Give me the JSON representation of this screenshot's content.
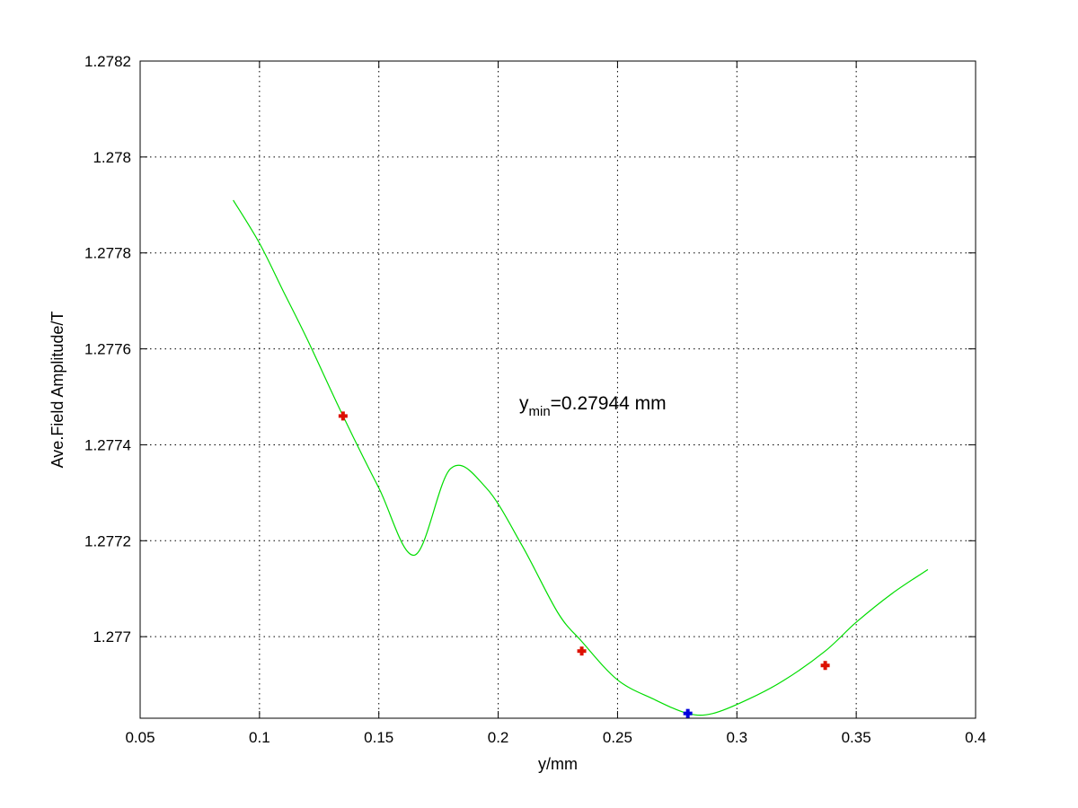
{
  "chart_data": {
    "type": "line",
    "title": "",
    "xlabel": "y/mm",
    "ylabel": "Ave.Field Amplitude/T",
    "xlim": [
      0.05,
      0.4
    ],
    "ylim": [
      1.27683,
      1.2782
    ],
    "x_ticks": [
      0.05,
      0.1,
      0.15,
      0.2,
      0.25,
      0.3,
      0.35,
      0.4
    ],
    "x_tick_labels": [
      "0.05",
      "0.1",
      "0.15",
      "0.2",
      "0.25",
      "0.3",
      "0.35",
      "0.4"
    ],
    "y_ticks": [
      1.277,
      1.2772,
      1.2774,
      1.2776,
      1.2778,
      1.278,
      1.2782
    ],
    "y_tick_labels": [
      "1.277",
      "1.2772",
      "1.2774",
      "1.2776",
      "1.2778",
      "1.278",
      "1.2782"
    ],
    "grid": true,
    "fit_curve": {
      "color": "#00dd00",
      "points": [
        [
          0.089,
          1.27791
        ],
        [
          0.1,
          1.27782
        ],
        [
          0.11,
          1.27772
        ],
        [
          0.12,
          1.27762
        ],
        [
          0.135,
          1.27746
        ],
        [
          0.15,
          1.27731
        ],
        [
          0.165,
          1.27717
        ],
        [
          0.18,
          1.27735
        ],
        [
          0.195,
          1.27731
        ],
        [
          0.21,
          1.27719
        ],
        [
          0.225,
          1.27705
        ],
        [
          0.235,
          1.27699
        ],
        [
          0.25,
          1.27691
        ],
        [
          0.265,
          1.27687
        ],
        [
          0.27944,
          1.27684
        ],
        [
          0.29,
          1.27684
        ],
        [
          0.305,
          1.27687
        ],
        [
          0.32,
          1.27691
        ],
        [
          0.337,
          1.27697
        ],
        [
          0.35,
          1.27703
        ],
        [
          0.365,
          1.27709
        ],
        [
          0.38,
          1.27714
        ]
      ]
    },
    "data_points": {
      "color": "#dd1100",
      "points": [
        [
          0.135,
          1.27746
        ],
        [
          0.235,
          1.27697
        ],
        [
          0.337,
          1.27694
        ]
      ]
    },
    "min_point": {
      "color": "#0000dd",
      "point": [
        0.27944,
        1.27684
      ]
    },
    "annotation": {
      "prefix": "y",
      "subscript": "min",
      "text": "=0.27944 mm"
    }
  }
}
